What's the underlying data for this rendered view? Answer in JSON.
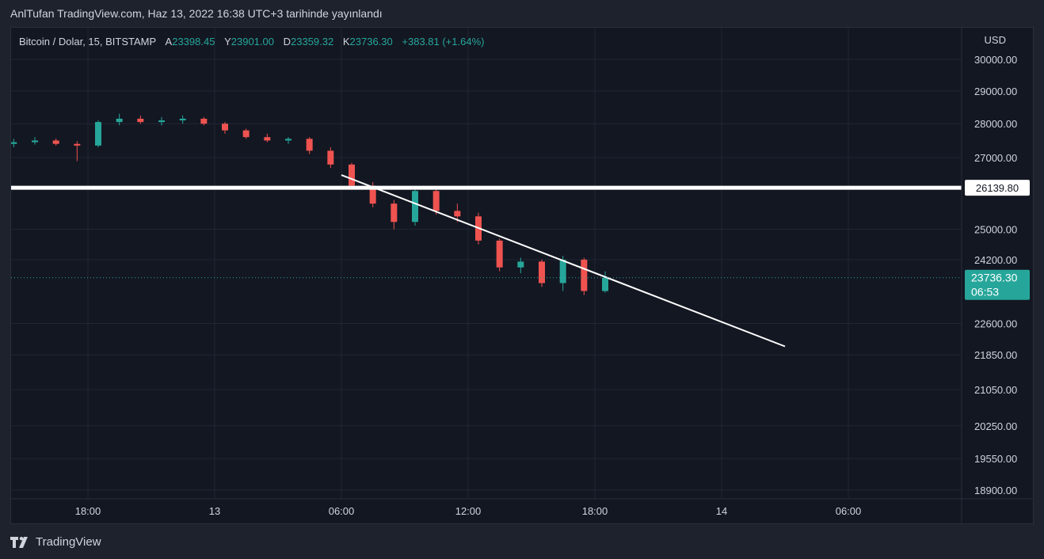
{
  "header": {
    "published": "AnlTufan TradingView.com, Haz 13, 2022 16:38 UTC+3 tarihinde yayınlandı"
  },
  "legend": {
    "symbol": "Bitcoin / Dolar, 15, BITSTAMP",
    "open_label": "A",
    "open": "23398.45",
    "high_label": "Y",
    "high": "23901.00",
    "low_label": "D",
    "low": "23359.32",
    "close_label": "K",
    "close": "23736.30",
    "change": "+383.81 (+1.64%)"
  },
  "currency": "USD",
  "footer": {
    "brand": "TradingView",
    "logo_icon": "tradingview-logo-icon"
  },
  "colors": {
    "up": "#26a69a",
    "down": "#ef5350",
    "background": "#131722",
    "grid": "#2a2e39",
    "horizontal_line": "#ffffff",
    "trendline": "#ffffff"
  },
  "chart_data": {
    "type": "candlestick",
    "price_axis": {
      "ticks": [
        "30000.00",
        "29000.00",
        "28000.00",
        "27000.00",
        "25000.00",
        "24200.00",
        "22600.00",
        "21850.00",
        "21050.00",
        "20250.00",
        "19550.00",
        "18900.00"
      ],
      "scale": "log"
    },
    "time_axis": {
      "ticks": [
        "18:00",
        "13",
        "06:00",
        "12:00",
        "18:00",
        "14",
        "06:00"
      ]
    },
    "horizontal_line": {
      "price": 26139.8,
      "label": "26139.80"
    },
    "last_price": {
      "label": "23736.30",
      "countdown": "06:53"
    },
    "trendline": {
      "start": {
        "time": "2022-06-13 06:00",
        "price": 26500
      },
      "end": {
        "time": "2022-06-14 03:00",
        "price": 22050
      }
    },
    "candles_hourly_approx": [
      {
        "t": "2022-06-12 14:00",
        "o": 27400,
        "h": 27550,
        "l": 27300,
        "c": 27450
      },
      {
        "t": "2022-06-12 15:00",
        "o": 27450,
        "h": 27600,
        "l": 27380,
        "c": 27500
      },
      {
        "t": "2022-06-12 16:00",
        "o": 27500,
        "h": 27560,
        "l": 27350,
        "c": 27400
      },
      {
        "t": "2022-06-12 17:00",
        "o": 27400,
        "h": 27480,
        "l": 26900,
        "c": 27350
      },
      {
        "t": "2022-06-12 18:00",
        "o": 27350,
        "h": 28100,
        "l": 27300,
        "c": 28050
      },
      {
        "t": "2022-06-12 19:00",
        "o": 28050,
        "h": 28300,
        "l": 27950,
        "c": 28150
      },
      {
        "t": "2022-06-12 20:00",
        "o": 28150,
        "h": 28250,
        "l": 28000,
        "c": 28050
      },
      {
        "t": "2022-06-12 21:00",
        "o": 28050,
        "h": 28200,
        "l": 27950,
        "c": 28100
      },
      {
        "t": "2022-06-12 22:00",
        "o": 28100,
        "h": 28250,
        "l": 28000,
        "c": 28150
      },
      {
        "t": "2022-06-12 23:00",
        "o": 28150,
        "h": 28200,
        "l": 27950,
        "c": 28000
      },
      {
        "t": "2022-06-13 00:00",
        "o": 28000,
        "h": 28050,
        "l": 27700,
        "c": 27800
      },
      {
        "t": "2022-06-13 01:00",
        "o": 27800,
        "h": 27850,
        "l": 27550,
        "c": 27600
      },
      {
        "t": "2022-06-13 02:00",
        "o": 27600,
        "h": 27700,
        "l": 27450,
        "c": 27500
      },
      {
        "t": "2022-06-13 03:00",
        "o": 27500,
        "h": 27600,
        "l": 27400,
        "c": 27550
      },
      {
        "t": "2022-06-13 04:00",
        "o": 27550,
        "h": 27600,
        "l": 27100,
        "c": 27200
      },
      {
        "t": "2022-06-13 05:00",
        "o": 27200,
        "h": 27300,
        "l": 26700,
        "c": 26800
      },
      {
        "t": "2022-06-13 06:00",
        "o": 26800,
        "h": 26850,
        "l": 26100,
        "c": 26200
      },
      {
        "t": "2022-06-13 07:00",
        "o": 26200,
        "h": 26300,
        "l": 25600,
        "c": 25700
      },
      {
        "t": "2022-06-13 08:00",
        "o": 25700,
        "h": 25800,
        "l": 25000,
        "c": 25200
      },
      {
        "t": "2022-06-13 09:00",
        "o": 25200,
        "h": 26200,
        "l": 25100,
        "c": 26050
      },
      {
        "t": "2022-06-13 10:00",
        "o": 26050,
        "h": 26100,
        "l": 25400,
        "c": 25500
      },
      {
        "t": "2022-06-13 11:00",
        "o": 25500,
        "h": 25700,
        "l": 25200,
        "c": 25350
      },
      {
        "t": "2022-06-13 12:00",
        "o": 25350,
        "h": 25450,
        "l": 24600,
        "c": 24700
      },
      {
        "t": "2022-06-13 13:00",
        "o": 24700,
        "h": 24750,
        "l": 23900,
        "c": 24000
      },
      {
        "t": "2022-06-13 14:00",
        "o": 24000,
        "h": 24250,
        "l": 23850,
        "c": 24150
      },
      {
        "t": "2022-06-13 15:00",
        "o": 24150,
        "h": 24200,
        "l": 23500,
        "c": 23600
      },
      {
        "t": "2022-06-13 16:00",
        "o": 23600,
        "h": 24300,
        "l": 23400,
        "c": 24200
      },
      {
        "t": "2022-06-13 17:00",
        "o": 24200,
        "h": 24250,
        "l": 23300,
        "c": 23400
      },
      {
        "t": "2022-06-13 18:00",
        "o": 23398.45,
        "h": 23901,
        "l": 23359.32,
        "c": 23736.3
      }
    ]
  }
}
